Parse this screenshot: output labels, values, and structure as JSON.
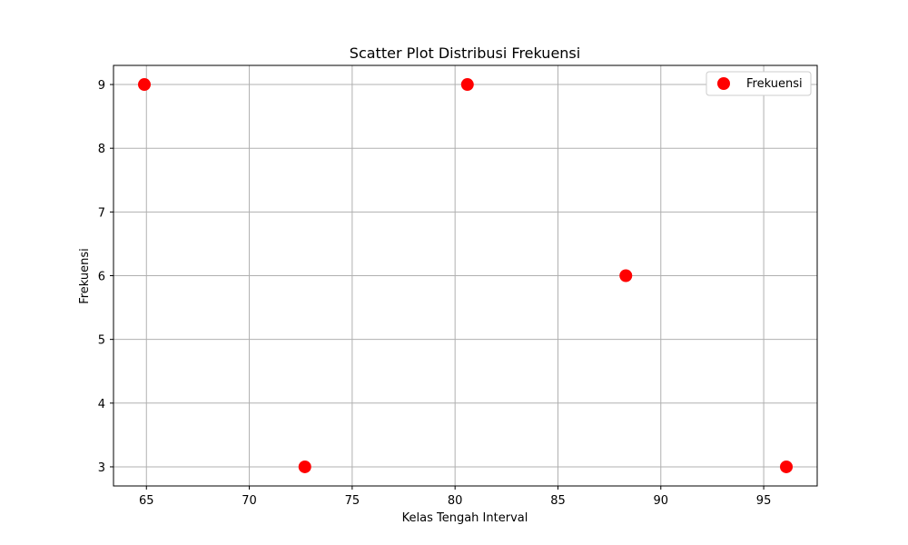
{
  "chart_data": {
    "type": "scatter",
    "title": "Scatter Plot Distribusi Frekuensi",
    "xlabel": "Kelas Tengah Interval",
    "ylabel": "Frekuensi",
    "xlim": [
      63.4,
      97.6
    ],
    "ylim": [
      2.7,
      9.3
    ],
    "xticks": [
      65,
      70,
      75,
      80,
      85,
      90,
      95
    ],
    "yticks": [
      3,
      4,
      5,
      6,
      7,
      8,
      9
    ],
    "grid": true,
    "legend_position": "top-right",
    "series": [
      {
        "name": "Frekuensi",
        "color": "#ff0000",
        "x": [
          64.9,
          72.7,
          80.6,
          88.3,
          96.1
        ],
        "y": [
          9,
          3,
          9,
          6,
          3
        ]
      }
    ]
  }
}
